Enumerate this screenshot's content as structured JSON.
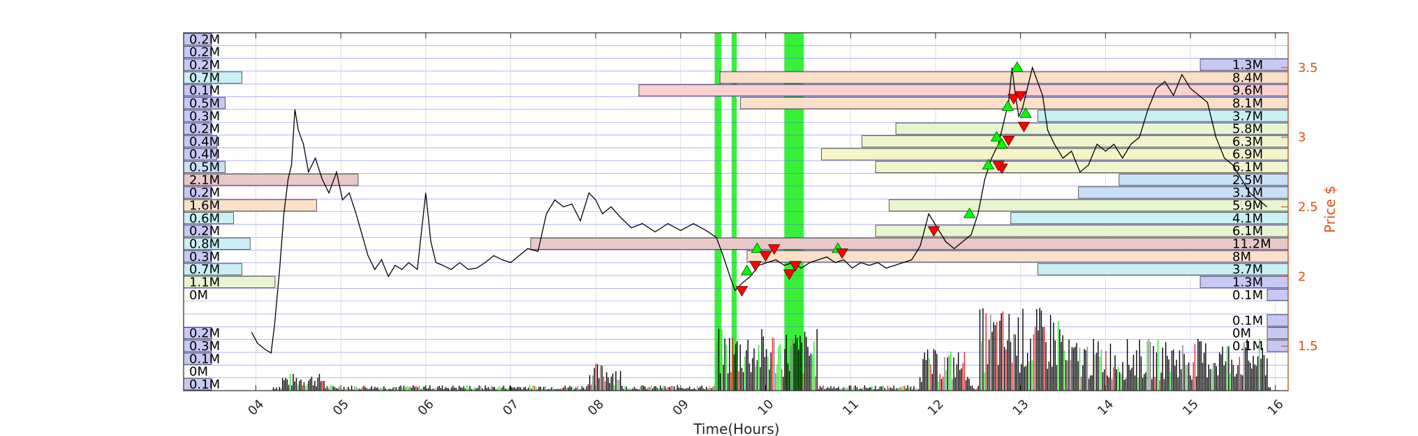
{
  "chart_data": {
    "type": "line",
    "xlabel": "Time(Hours)",
    "ylabel": "Price $",
    "x_ticks": [
      "04",
      "05",
      "06",
      "07",
      "08",
      "09",
      "10",
      "11",
      "12",
      "13",
      "14",
      "15",
      "16"
    ],
    "y_ticks": [
      1.5,
      2,
      2.5,
      3,
      3.5
    ],
    "xlim": [
      3.15,
      16.15
    ],
    "ylim": [
      1.18,
      3.75
    ],
    "grid": true,
    "price_series": [
      [
        3.95,
        1.6
      ],
      [
        4.02,
        1.52
      ],
      [
        4.1,
        1.48
      ],
      [
        4.18,
        1.45
      ],
      [
        4.22,
        1.65
      ],
      [
        4.28,
        2.05
      ],
      [
        4.33,
        2.45
      ],
      [
        4.38,
        2.7
      ],
      [
        4.42,
        2.8
      ],
      [
        4.46,
        3.2
      ],
      [
        4.5,
        3.05
      ],
      [
        4.56,
        2.95
      ],
      [
        4.62,
        2.75
      ],
      [
        4.7,
        2.85
      ],
      [
        4.78,
        2.7
      ],
      [
        4.86,
        2.6
      ],
      [
        4.95,
        2.75
      ],
      [
        5.02,
        2.55
      ],
      [
        5.1,
        2.6
      ],
      [
        5.18,
        2.45
      ],
      [
        5.25,
        2.3
      ],
      [
        5.32,
        2.15
      ],
      [
        5.4,
        2.05
      ],
      [
        5.48,
        2.12
      ],
      [
        5.56,
        2.0
      ],
      [
        5.64,
        2.08
      ],
      [
        5.72,
        2.05
      ],
      [
        5.8,
        2.1
      ],
      [
        5.9,
        2.05
      ],
      [
        6.0,
        2.6
      ],
      [
        6.06,
        2.25
      ],
      [
        6.12,
        2.1
      ],
      [
        6.2,
        2.08
      ],
      [
        6.3,
        2.05
      ],
      [
        6.4,
        2.1
      ],
      [
        6.5,
        2.05
      ],
      [
        6.6,
        2.06
      ],
      [
        6.7,
        2.1
      ],
      [
        6.8,
        2.15
      ],
      [
        6.9,
        2.12
      ],
      [
        7.0,
        2.1
      ],
      [
        7.1,
        2.15
      ],
      [
        7.2,
        2.2
      ],
      [
        7.32,
        2.18
      ],
      [
        7.42,
        2.45
      ],
      [
        7.52,
        2.55
      ],
      [
        7.62,
        2.5
      ],
      [
        7.72,
        2.52
      ],
      [
        7.82,
        2.4
      ],
      [
        7.92,
        2.6
      ],
      [
        8.0,
        2.55
      ],
      [
        8.08,
        2.45
      ],
      [
        8.18,
        2.5
      ],
      [
        8.3,
        2.42
      ],
      [
        8.42,
        2.35
      ],
      [
        8.55,
        2.38
      ],
      [
        8.7,
        2.32
      ],
      [
        8.85,
        2.38
      ],
      [
        9.0,
        2.33
      ],
      [
        9.15,
        2.38
      ],
      [
        9.3,
        2.33
      ],
      [
        9.42,
        2.28
      ],
      [
        9.5,
        2.15
      ],
      [
        9.58,
        2.0
      ],
      [
        9.64,
        1.9
      ],
      [
        9.72,
        1.95
      ],
      [
        9.82,
        2.0
      ],
      [
        9.92,
        2.08
      ],
      [
        10.02,
        2.1
      ],
      [
        10.12,
        2.12
      ],
      [
        10.22,
        2.08
      ],
      [
        10.32,
        2.1
      ],
      [
        10.42,
        2.06
      ],
      [
        10.52,
        2.1
      ],
      [
        10.62,
        2.12
      ],
      [
        10.72,
        2.14
      ],
      [
        10.82,
        2.1
      ],
      [
        10.92,
        2.12
      ],
      [
        11.02,
        2.06
      ],
      [
        11.12,
        2.1
      ],
      [
        11.22,
        2.08
      ],
      [
        11.32,
        2.1
      ],
      [
        11.42,
        2.06
      ],
      [
        11.52,
        2.08
      ],
      [
        11.62,
        2.1
      ],
      [
        11.72,
        2.12
      ],
      [
        11.82,
        2.22
      ],
      [
        11.92,
        2.45
      ],
      [
        12.02,
        2.35
      ],
      [
        12.12,
        2.25
      ],
      [
        12.22,
        2.2
      ],
      [
        12.32,
        2.25
      ],
      [
        12.42,
        2.3
      ],
      [
        12.5,
        2.45
      ],
      [
        12.58,
        2.7
      ],
      [
        12.66,
        2.85
      ],
      [
        12.74,
        2.95
      ],
      [
        12.8,
        3.1
      ],
      [
        12.86,
        3.25
      ],
      [
        12.9,
        3.5
      ],
      [
        12.94,
        3.3
      ],
      [
        12.98,
        3.15
      ],
      [
        13.02,
        3.2
      ],
      [
        13.08,
        3.35
      ],
      [
        13.14,
        3.5
      ],
      [
        13.2,
        3.4
      ],
      [
        13.26,
        3.3
      ],
      [
        13.32,
        3.05
      ],
      [
        13.4,
        2.95
      ],
      [
        13.5,
        2.85
      ],
      [
        13.6,
        2.9
      ],
      [
        13.7,
        2.75
      ],
      [
        13.8,
        2.8
      ],
      [
        13.9,
        2.95
      ],
      [
        14.0,
        2.9
      ],
      [
        14.1,
        2.95
      ],
      [
        14.2,
        2.85
      ],
      [
        14.3,
        2.95
      ],
      [
        14.4,
        3.0
      ],
      [
        14.5,
        3.2
      ],
      [
        14.6,
        3.35
      ],
      [
        14.7,
        3.4
      ],
      [
        14.8,
        3.3
      ],
      [
        14.9,
        3.45
      ],
      [
        15.0,
        3.35
      ],
      [
        15.1,
        3.3
      ],
      [
        15.2,
        3.25
      ],
      [
        15.3,
        3.0
      ],
      [
        15.4,
        2.85
      ],
      [
        15.5,
        2.8
      ],
      [
        15.6,
        2.7
      ],
      [
        15.7,
        2.6
      ],
      [
        15.8,
        2.55
      ],
      [
        15.9,
        2.5
      ]
    ],
    "buy_markers": [
      [
        9.78,
        2.04
      ],
      [
        9.9,
        2.2
      ],
      [
        12.4,
        2.45
      ],
      [
        12.62,
        2.8
      ],
      [
        12.72,
        3.0
      ],
      [
        12.85,
        3.22
      ],
      [
        12.96,
        3.5
      ],
      [
        13.06,
        3.17
      ],
      [
        10.85,
        2.2
      ],
      [
        12.78,
        2.95
      ]
    ],
    "sell_markers": [
      [
        9.72,
        1.9
      ],
      [
        9.88,
        2.08
      ],
      [
        10.0,
        2.15
      ],
      [
        10.1,
        2.2
      ],
      [
        10.28,
        2.02
      ],
      [
        10.35,
        2.08
      ],
      [
        10.9,
        2.17
      ],
      [
        11.98,
        2.33
      ],
      [
        12.78,
        2.78
      ],
      [
        12.86,
        2.98
      ],
      [
        12.92,
        3.28
      ],
      [
        13.0,
        3.3
      ],
      [
        13.04,
        3.08
      ],
      [
        12.74,
        2.8
      ]
    ],
    "green_bands": [
      [
        9.4,
        9.48
      ],
      [
        9.6,
        9.66
      ],
      [
        10.22,
        10.45
      ]
    ],
    "left_volume_profile": [
      {
        "label": "0.2M",
        "value": 0.2,
        "color": "#c8c8f5"
      },
      {
        "label": "0.2M",
        "value": 0.2,
        "color": "#c8c8f5"
      },
      {
        "label": "0.2M",
        "value": 0.2,
        "color": "#c8c8f5"
      },
      {
        "label": "0.7M",
        "value": 0.7,
        "color": "#c8f0f5"
      },
      {
        "label": "0.1M",
        "value": 0.1,
        "color": "#c8c8f5"
      },
      {
        "label": "0.5M",
        "value": 0.5,
        "color": "#c8c8f5"
      },
      {
        "label": "0.3M",
        "value": 0.3,
        "color": "#c8c8f5"
      },
      {
        "label": "0.2M",
        "value": 0.2,
        "color": "#c8c8f5"
      },
      {
        "label": "0.4M",
        "value": 0.4,
        "color": "#c8c8f5"
      },
      {
        "label": "0.4M",
        "value": 0.4,
        "color": "#c8c8f5"
      },
      {
        "label": "0.5M",
        "value": 0.5,
        "color": "#c8e0f5"
      },
      {
        "label": "2.1M",
        "value": 2.1,
        "color": "#e8c8c8"
      },
      {
        "label": "0.2M",
        "value": 0.2,
        "color": "#c8c8f5"
      },
      {
        "label": "1.6M",
        "value": 1.6,
        "color": "#fae0c8"
      },
      {
        "label": "0.6M",
        "value": 0.6,
        "color": "#c8f0f5"
      },
      {
        "label": "0.2M",
        "value": 0.2,
        "color": "#c8c8f5"
      },
      {
        "label": "0.8M",
        "value": 0.8,
        "color": "#c8f0f5"
      },
      {
        "label": "0.3M",
        "value": 0.3,
        "color": "#c8c8f5"
      },
      {
        "label": "0.7M",
        "value": 0.7,
        "color": "#c8f0f5"
      },
      {
        "label": "1.1M",
        "value": 1.1,
        "color": "#e8f5d0"
      },
      {
        "label": "0M",
        "value": 0,
        "color": "#ffffff"
      },
      {
        "label": "",
        "value": 0,
        "color": "#ffffff"
      },
      {
        "label": "",
        "value": 0,
        "color": "#ffffff"
      },
      {
        "label": "0.2M",
        "value": 0.2,
        "color": "#c8c8f5"
      },
      {
        "label": "0.3M",
        "value": 0.3,
        "color": "#c8c8f5"
      },
      {
        "label": "0.1M",
        "value": 0.1,
        "color": "#c8c8f5"
      },
      {
        "label": "0M",
        "value": 0,
        "color": "#c8c8f5"
      },
      {
        "label": "0.1M",
        "value": 0.1,
        "color": "#c8c8f5"
      }
    ],
    "right_volume_profile": [
      {
        "label": "",
        "value": 0,
        "color": "#ffffff"
      },
      {
        "label": "",
        "value": 0,
        "color": "#ffffff"
      },
      {
        "label": "1.3M",
        "value": 1.3,
        "color": "#c8c8f5"
      },
      {
        "label": "8.4M",
        "value": 8.4,
        "color": "#fae0c8"
      },
      {
        "label": "9.6M",
        "value": 9.6,
        "color": "#fad0d0"
      },
      {
        "label": "8.1M",
        "value": 8.1,
        "color": "#fae0c8"
      },
      {
        "label": "3.7M",
        "value": 3.7,
        "color": "#c8f0f5"
      },
      {
        "label": "5.8M",
        "value": 5.8,
        "color": "#e8f5d0"
      },
      {
        "label": "6.3M",
        "value": 6.3,
        "color": "#f0f5d0"
      },
      {
        "label": "6.9M",
        "value": 6.9,
        "color": "#f5f5c8"
      },
      {
        "label": "6.1M",
        "value": 6.1,
        "color": "#f0f5d0"
      },
      {
        "label": "2.5M",
        "value": 2.5,
        "color": "#c8e0f5"
      },
      {
        "label": "3.1M",
        "value": 3.1,
        "color": "#c8e0f5"
      },
      {
        "label": "5.9M",
        "value": 5.9,
        "color": "#e8f5d0"
      },
      {
        "label": "4.1M",
        "value": 4.1,
        "color": "#c8f0f5"
      },
      {
        "label": "6.1M",
        "value": 6.1,
        "color": "#e8f5d0"
      },
      {
        "label": "11.2M",
        "value": 11.2,
        "color": "#e8c8c8"
      },
      {
        "label": "8M",
        "value": 8.0,
        "color": "#fae0c8"
      },
      {
        "label": "3.7M",
        "value": 3.7,
        "color": "#c8f0f5"
      },
      {
        "label": "1.3M",
        "value": 1.3,
        "color": "#c8c8f5"
      },
      {
        "label": "0.1M",
        "value": 0.1,
        "color": "#c8c8f5"
      },
      {
        "label": "",
        "value": 0,
        "color": "#ffffff"
      },
      {
        "label": "0.1M",
        "value": 0.1,
        "color": "#c8c8f5"
      },
      {
        "label": "0M",
        "value": 0,
        "color": "#c8c8f5"
      },
      {
        "label": "0.1M",
        "value": 0.1,
        "color": "#c8c8f5"
      },
      {
        "label": "",
        "value": 0,
        "color": "#ffffff"
      },
      {
        "label": "",
        "value": 0,
        "color": "#ffffff"
      },
      {
        "label": "",
        "value": 0,
        "color": "#ffffff"
      }
    ],
    "colors": {
      "price_line": "#000000",
      "buy": "#00ff00",
      "sell": "#ff0000",
      "band": "#22ee22",
      "grid": "#5555ff",
      "right_axis": "#d95319",
      "volume_black": "#000000",
      "volume_green": "#22ee22",
      "volume_red": "#ee2222",
      "volume_gray": "#808080"
    }
  }
}
